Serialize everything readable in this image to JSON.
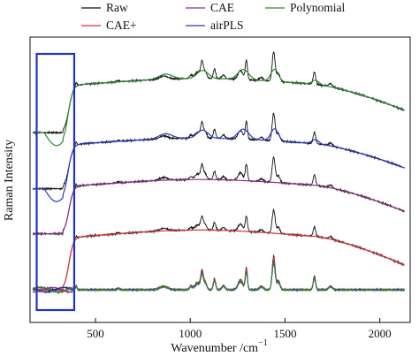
{
  "chart_data": {
    "type": "line",
    "xlabel_main": "Wavenumber /cm",
    "xlabel_sup": "−1",
    "ylabel": "Raman Intensity",
    "xlim": [
      155,
      2160
    ],
    "x_ticks": [
      500,
      1000,
      1500,
      2000
    ],
    "y_ticks": [],
    "grid": false,
    "legend_position": "top, 3 columns",
    "legend": [
      {
        "label": "Raw",
        "color": "#111111"
      },
      {
        "label": "CAE",
        "color": "#8e2a8e"
      },
      {
        "label": "Polynomial",
        "color": "#2a8a2a"
      },
      {
        "label": "CAE+",
        "color": "#e0302a"
      },
      {
        "label": "airPLS",
        "color": "#2a35c8"
      }
    ],
    "highlight_box": {
      "x_range": [
        190,
        388
      ],
      "color": "#2233cc"
    },
    "raman_peaks": [
      {
        "x": 398,
        "h": 0.12,
        "w": 6
      },
      {
        "x": 620,
        "h": 0.04,
        "w": 10
      },
      {
        "x": 860,
        "h": 0.1,
        "w": 30
      },
      {
        "x": 1003,
        "h": 0.1,
        "w": 10
      },
      {
        "x": 1040,
        "h": 0.2,
        "w": 22
      },
      {
        "x": 1062,
        "h": 0.45,
        "w": 9
      },
      {
        "x": 1078,
        "h": 0.22,
        "w": 12
      },
      {
        "x": 1128,
        "h": 0.3,
        "w": 9
      },
      {
        "x": 1175,
        "h": 0.12,
        "w": 12
      },
      {
        "x": 1265,
        "h": 0.28,
        "w": 18
      },
      {
        "x": 1296,
        "h": 0.6,
        "w": 8
      },
      {
        "x": 1375,
        "h": 0.1,
        "w": 14
      },
      {
        "x": 1440,
        "h": 0.92,
        "w": 11
      },
      {
        "x": 1465,
        "h": 0.25,
        "w": 12
      },
      {
        "x": 1655,
        "h": 0.38,
        "w": 9
      },
      {
        "x": 1740,
        "h": 0.1,
        "w": 14
      }
    ],
    "traces": [
      {
        "name": "CAE+",
        "color": "#e0302a",
        "offset": 0.0,
        "amp": 1.3,
        "mode": "smooth"
      },
      {
        "name": "CAE",
        "color": "#8e2a8e",
        "offset": 1.22,
        "amp": 1.18,
        "mode": "smooth"
      },
      {
        "name": "airPLS",
        "color": "#2a35c8",
        "offset": 2.2,
        "amp": 1.1,
        "mode": "bumpy"
      },
      {
        "name": "Polynomial",
        "color": "#2a8a2a",
        "offset": 3.42,
        "amp": 1.18,
        "mode": "bumpy"
      }
    ],
    "corrected_traces": [
      {
        "name": "Raw",
        "color": "#111111",
        "scale": 0.42
      },
      {
        "name": "CAE+",
        "color": "#e0302a",
        "scale": 0.4
      },
      {
        "name": "CAE",
        "color": "#8e2a8e",
        "scale": 0.36
      },
      {
        "name": "airPLS",
        "color": "#2a35c8",
        "scale": 0.32
      },
      {
        "name": "Polynomial",
        "color": "#2a8a2a",
        "scale": 0.34
      }
    ]
  }
}
